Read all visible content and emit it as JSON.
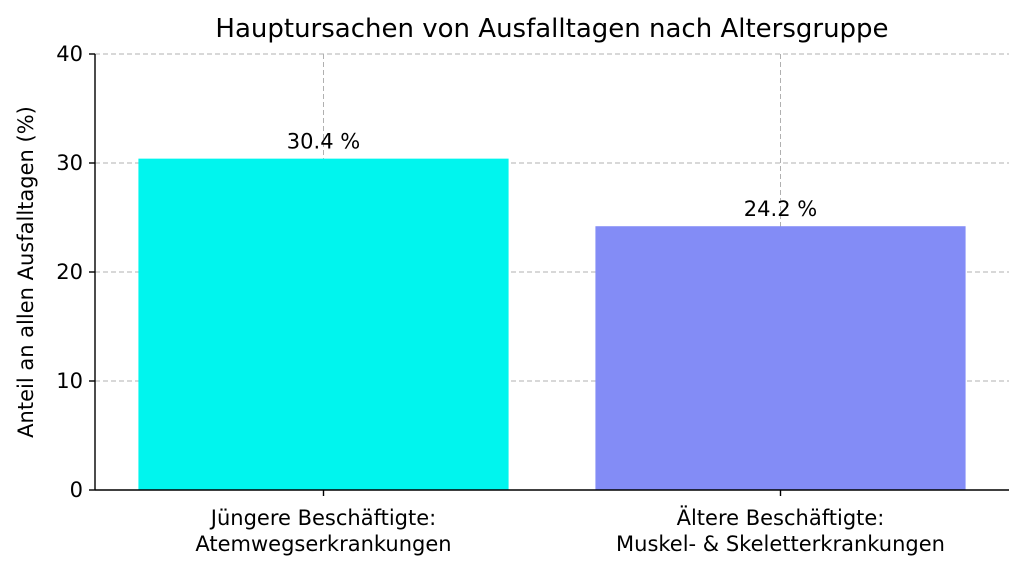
{
  "chart_data": {
    "type": "bar",
    "title": "Hauptursachen von Ausfalltagen nach Altersgruppe",
    "xlabel": "",
    "ylabel": "Anteil an allen Ausfalltagen (%)",
    "ylim": [
      0,
      40
    ],
    "yticks": [
      0,
      10,
      20,
      30,
      40
    ],
    "grid": true,
    "categories": [
      [
        "Jüngere Beschäftigte:",
        "Atemwegserkrankungen"
      ],
      [
        "Ältere Beschäftigte:",
        "Muskel- & Skeletterkrankungen"
      ]
    ],
    "values": [
      30.4,
      24.2
    ],
    "data_labels": [
      "30.4 %",
      "24.2 %"
    ],
    "colors": [
      "#00f5ee",
      "#838cf6"
    ]
  }
}
